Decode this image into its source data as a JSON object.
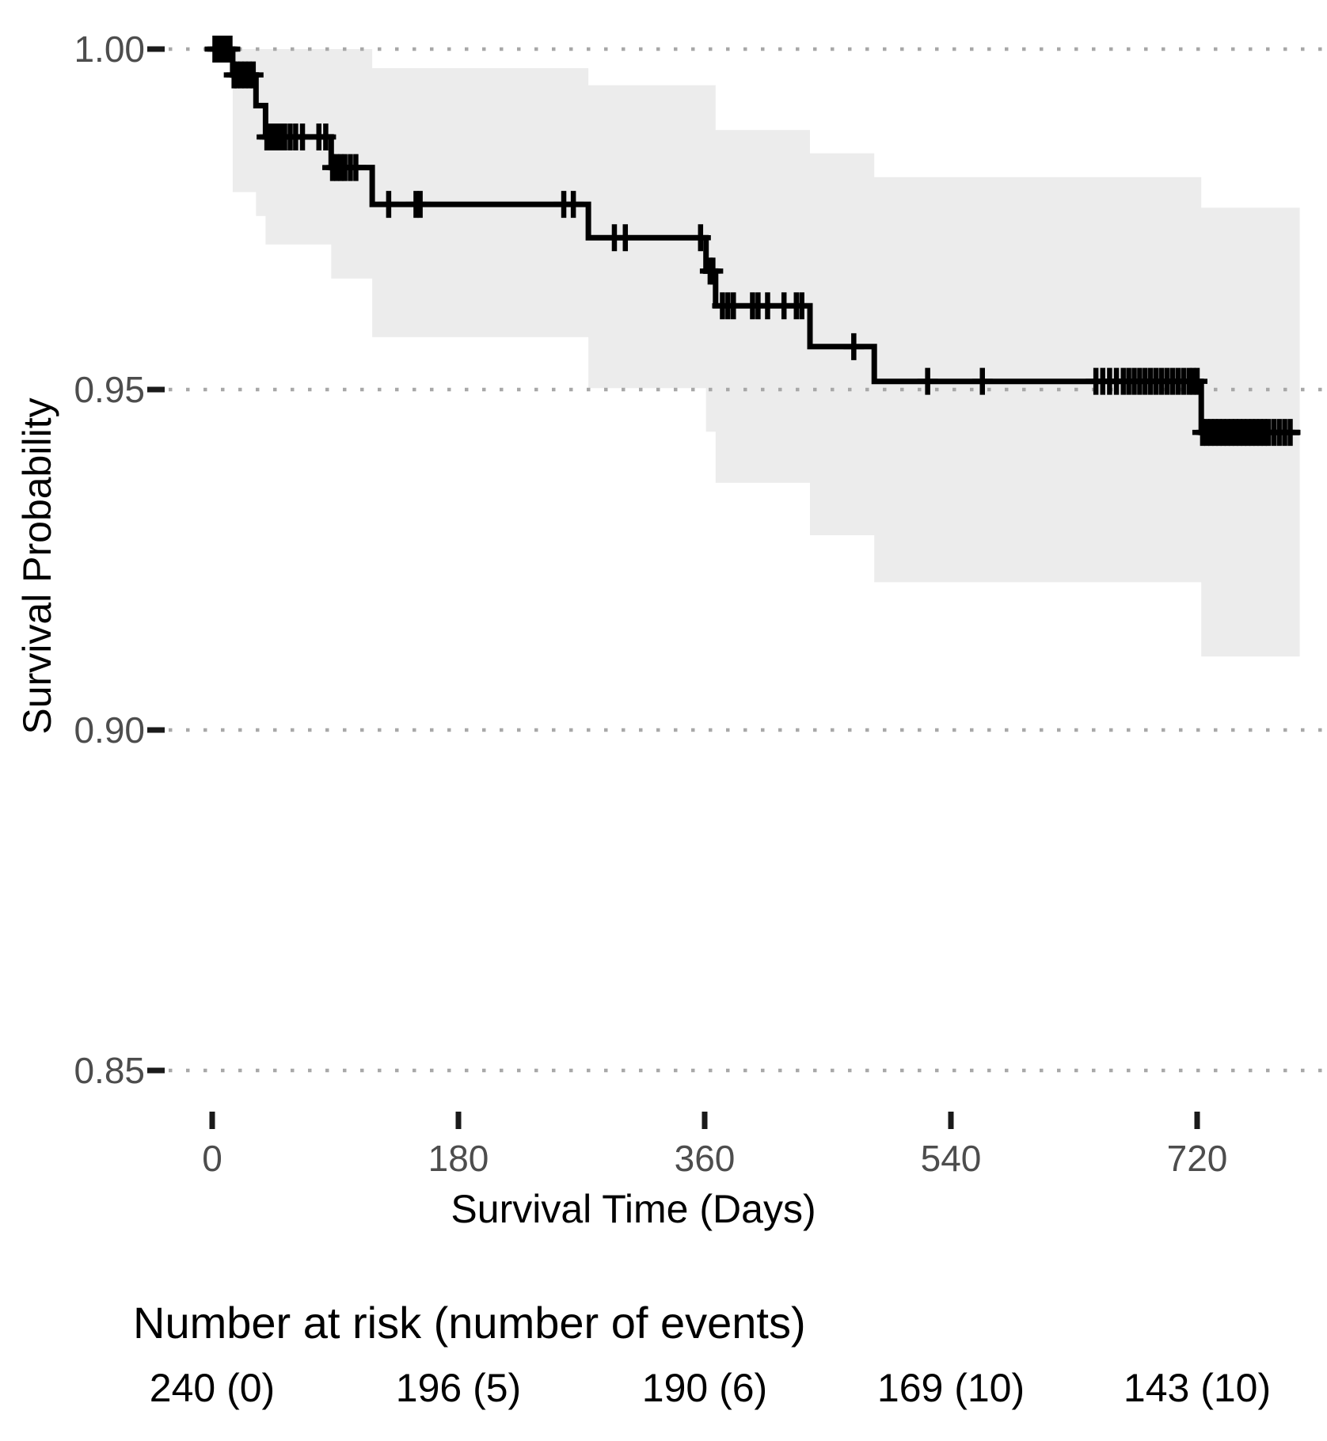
{
  "chart_data": {
    "type": "line",
    "subtype": "kaplan-meier-step-curve-with-confidence-band",
    "title": "",
    "xlabel": "Survival Time (Days)",
    "ylabel": "Survival Probability",
    "x_ticks": [
      0,
      180,
      360,
      540,
      720
    ],
    "x_tick_labels": [
      "0",
      "180",
      "360",
      "540",
      "720"
    ],
    "y_ticks": [
      1.0,
      0.95,
      0.9,
      0.85
    ],
    "y_tick_labels": [
      "1.00",
      "0.95",
      "0.90",
      "0.85"
    ],
    "xlim": [
      0,
      795
    ],
    "ylim": [
      0.845,
      1.003
    ],
    "grid": "dotted-horizontal-only",
    "legend": "none",
    "survival_steps": [
      {
        "t": 0,
        "s": 1.0
      },
      {
        "t": 15,
        "s": 0.9962
      },
      {
        "t": 32,
        "s": 0.9917
      },
      {
        "t": 39,
        "s": 0.9871
      },
      {
        "t": 87,
        "s": 0.9826
      },
      {
        "t": 117,
        "s": 0.9772
      },
      {
        "t": 275,
        "s": 0.9723
      },
      {
        "t": 361,
        "s": 0.9674
      },
      {
        "t": 368,
        "s": 0.9623
      },
      {
        "t": 437,
        "s": 0.9563
      },
      {
        "t": 484,
        "s": 0.9512
      },
      {
        "t": 723,
        "s": 0.9437
      }
    ],
    "t_max": 795,
    "censor_times": [
      2,
      4,
      6,
      8,
      11,
      13,
      16,
      18,
      21,
      24,
      27,
      30,
      40,
      42,
      44,
      47,
      50,
      53,
      57,
      61,
      66,
      78,
      83,
      88,
      91,
      94,
      97,
      101,
      105,
      129,
      149,
      152,
      257,
      264,
      294,
      302,
      357,
      364,
      366,
      373,
      377,
      381,
      395,
      399,
      406,
      418,
      427,
      431,
      469,
      523,
      563,
      646,
      651,
      656,
      661,
      666,
      670,
      674,
      678,
      682,
      686,
      690,
      694,
      698,
      702,
      706,
      710,
      714,
      717,
      720,
      724,
      727,
      730,
      733,
      736,
      739,
      742,
      745,
      748,
      751,
      754,
      757,
      760,
      763,
      766,
      769,
      772,
      776,
      780,
      784,
      788
    ],
    "confidence_band": {
      "upper": [
        {
          "t": 15,
          "s": 1.0
        },
        {
          "t": 117,
          "s": 0.9972
        },
        {
          "t": 275,
          "s": 0.9947
        },
        {
          "t": 368,
          "s": 0.9881
        },
        {
          "t": 437,
          "s": 0.9847
        },
        {
          "t": 484,
          "s": 0.9812
        },
        {
          "t": 723,
          "s": 0.9767
        }
      ],
      "lower": [
        {
          "t": 15,
          "s": 0.979
        },
        {
          "t": 32,
          "s": 0.9755
        },
        {
          "t": 39,
          "s": 0.9713
        },
        {
          "t": 87,
          "s": 0.9663
        },
        {
          "t": 117,
          "s": 0.9577
        },
        {
          "t": 275,
          "s": 0.9502
        },
        {
          "t": 361,
          "s": 0.9438
        },
        {
          "t": 368,
          "s": 0.9363
        },
        {
          "t": 437,
          "s": 0.9286
        },
        {
          "t": 484,
          "s": 0.9217
        },
        {
          "t": 723,
          "s": 0.9108
        }
      ]
    },
    "risk_table": {
      "title": "Number at risk (number of events)",
      "times": [
        0,
        180,
        360,
        540,
        720
      ],
      "labels": [
        "240 (0)",
        "196 (5)",
        "190 (6)",
        "169 (10)",
        "143 (10)"
      ]
    },
    "colors": {
      "curve": "#000000",
      "confidence_band": "#ececec",
      "gridline": "#a8a8a8",
      "tick_text": "#4d4d4d",
      "axis_text": "#000000",
      "background": "#ffffff"
    }
  }
}
